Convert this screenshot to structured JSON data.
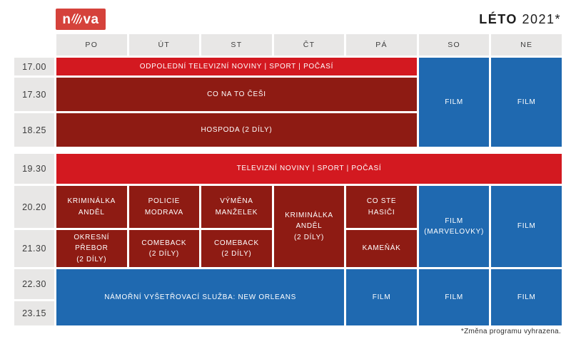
{
  "brand": {
    "logo_pre": "n",
    "logo_post": "va",
    "logo_icon": "nova-globe-icon"
  },
  "title": {
    "season": "LÉTO",
    "year": "2021*"
  },
  "schedule": {
    "day_headers": [
      "PO",
      "ÚT",
      "ST",
      "ČT",
      "PÁ",
      "SO",
      "NE"
    ],
    "time_slots": [
      "17.00",
      "17.30",
      "18.25",
      "19.30",
      "20.20",
      "21.30",
      "22.30",
      "23.15"
    ],
    "cells": [
      {
        "label": "ODPOLEDNÍ TELEVIZNÍ NOVINY | SPORT | POČASÍ",
        "time": "17.00",
        "days": "PO–PÁ",
        "color": "bright_red"
      },
      {
        "label": "FILM",
        "time": "17.00–18.25",
        "days": "SO",
        "color": "blue"
      },
      {
        "label": "FILM",
        "time": "17.00–18.25",
        "days": "NE",
        "color": "blue"
      },
      {
        "label": "CO NA TO ČEŠI",
        "time": "17.30",
        "days": "PO–PÁ",
        "color": "dark_red"
      },
      {
        "label": "HOSPODA (2 DÍLY)",
        "time": "18.25",
        "days": "PO–PÁ",
        "color": "dark_red"
      },
      {
        "label": "TELEVIZNÍ NOVINY | SPORT | POČASÍ",
        "time": "19.30",
        "days": "PO–NE",
        "color": "bright_red"
      },
      {
        "label": "KRIMINÁLKA\nANDĚL",
        "time": "20.20",
        "days": "PO",
        "color": "dark_red"
      },
      {
        "label": "POLICIE\nMODRAVA",
        "time": "20.20",
        "days": "ÚT",
        "color": "dark_red"
      },
      {
        "label": "VÝMĚNA\nMANŽELEK",
        "time": "20.20",
        "days": "ST",
        "color": "dark_red"
      },
      {
        "label": "KRIMINÁLKA\nANDĚL\n(2 DÍLY)",
        "time": "20.20–21.30",
        "days": "ČT",
        "color": "dark_red"
      },
      {
        "label": "CO STE\nHASIČI",
        "time": "20.20",
        "days": "PÁ",
        "color": "dark_red"
      },
      {
        "label": "FILM\n(MARVELOVKY)",
        "time": "20.20–21.30",
        "days": "SO",
        "color": "blue"
      },
      {
        "label": "FILM",
        "time": "20.20–21.30",
        "days": "NE",
        "color": "blue"
      },
      {
        "label": "OKRESNÍ PŘEBOR\n(2 DÍLY)",
        "time": "21.30",
        "days": "PO",
        "color": "dark_red"
      },
      {
        "label": "COMEBACK\n(2 DÍLY)",
        "time": "21.30",
        "days": "ÚT",
        "color": "dark_red"
      },
      {
        "label": "COMEBACK\n(2 DÍLY)",
        "time": "21.30",
        "days": "ST",
        "color": "dark_red"
      },
      {
        "label": "KAMEŇÁK",
        "time": "21.30",
        "days": "PÁ",
        "color": "dark_red"
      },
      {
        "label": "NÁMOŘNÍ VYŠETŘOVACÍ SLUŽBA: NEW ORLEANS",
        "time": "22.30–23.15",
        "days": "PO–ČT",
        "color": "blue"
      },
      {
        "label": "FILM",
        "time": "22.30–23.15",
        "days": "PÁ",
        "color": "blue"
      },
      {
        "label": "FILM",
        "time": "22.30–23.15",
        "days": "SO",
        "color": "blue"
      },
      {
        "label": "FILM",
        "time": "22.30–23.15",
        "days": "NE",
        "color": "blue"
      }
    ]
  },
  "footer": {
    "note": "*Změna programu vyhrazena."
  },
  "colors": {
    "bright_red": "#d31920",
    "dark_red": "#8e1b13",
    "blue": "#1f69b0",
    "header_gray": "#e8e7e6",
    "logo_red": "#d5423b",
    "text_dark": "#3d3d3d"
  }
}
